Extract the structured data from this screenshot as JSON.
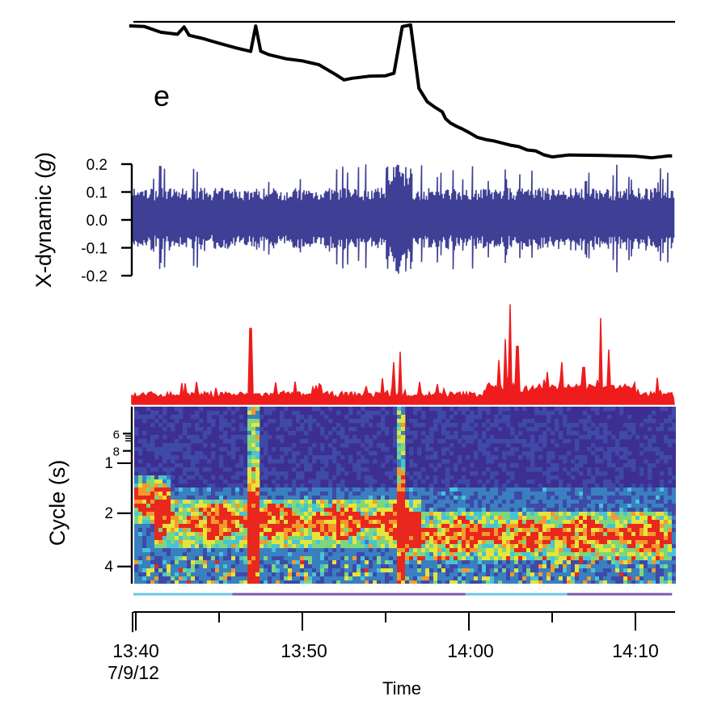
{
  "panel_label": "e",
  "chart_data": [
    {
      "type": "line",
      "panel": "depth-trace",
      "title": "",
      "xlabel": "",
      "ylabel": "",
      "x_unit": "minutes after 13:40",
      "color": "#000000",
      "series": [
        {
          "x": [
            -0.4,
            0.5,
            1.5,
            2.5,
            2.9,
            3.2,
            4.0,
            5.0,
            6.0,
            6.9,
            7.2,
            7.5,
            8.0,
            9.0,
            10.0,
            11.0,
            12.0,
            12.5,
            13.0,
            14.0,
            15.0,
            15.5,
            16.0,
            16.5,
            17.0,
            17.5,
            17.9,
            18.4,
            18.6,
            18.9,
            19.3,
            19.6,
            20.0,
            20.5,
            21.0,
            21.5,
            22.0,
            22.5,
            23.0,
            23.5,
            24.0,
            24.5,
            25.0,
            26.0,
            28.0,
            30.0,
            31.0,
            32.0,
            32.2
          ],
          "y": [
            100,
            99,
            97,
            95,
            99,
            95,
            93,
            90,
            88,
            86,
            100,
            86,
            84,
            82,
            80,
            78,
            73,
            70,
            70,
            72,
            72,
            74,
            100,
            100,
            65,
            58,
            55,
            52,
            48,
            46,
            44,
            42,
            40,
            38,
            36,
            35,
            34,
            33,
            32,
            31,
            30,
            28,
            27,
            27,
            27,
            27,
            26,
            27,
            27
          ]
        }
      ]
    },
    {
      "type": "line",
      "panel": "x-dynamic",
      "title": "",
      "xlabel": "",
      "ylabel": "X-dynamic (",
      "ylabel_unit": "g",
      "ylabel_close": ")",
      "ylim": [
        -0.2,
        0.2
      ],
      "yticks": [
        "0.2",
        "0.1",
        "0.0",
        "-0.1",
        "-0.2"
      ],
      "color": "#3e3f95",
      "envelope_note": "dense oscillation, amplitude mostly 0.05–0.15 g, spikes reaching ±0.2 g near 13:55"
    },
    {
      "type": "bar",
      "panel": "activity",
      "title": "",
      "color": "#ee1c1c",
      "x_unit": "minutes after 13:40",
      "peaks": [
        {
          "x": 6.9,
          "value": 0.72
        },
        {
          "x": 15.9,
          "value": 0.5
        },
        {
          "x": 15.5,
          "value": 0.4
        },
        {
          "x": 22.5,
          "value": 0.95
        },
        {
          "x": 22.2,
          "value": 0.62
        },
        {
          "x": 22.9,
          "value": 0.55
        },
        {
          "x": 21.8,
          "value": 0.42
        },
        {
          "x": 27.9,
          "value": 0.82
        },
        {
          "x": 28.4,
          "value": 0.52
        },
        {
          "x": 26.9,
          "value": 0.35
        },
        {
          "x": 25.6,
          "value": 0.4
        }
      ]
    },
    {
      "type": "heatmap",
      "panel": "spectrogram",
      "title": "",
      "xlabel": "",
      "ylabel": "Cycle (s)",
      "ytick_labels": [
        "6",
        "8",
        "1",
        "2",
        "4"
      ],
      "colormap": [
        "#3b2d8f",
        "#3f49a8",
        "#3a7fc0",
        "#46c4d6",
        "#7ed67c",
        "#e6e43a",
        "#f39a2a",
        "#e8281e"
      ],
      "features": [
        {
          "period": 1.6,
          "from": -0.4,
          "to": 2.0,
          "strength": "high"
        },
        {
          "period": 2.2,
          "from": 1.0,
          "to": 17.0,
          "strength": "high"
        },
        {
          "period": 2.6,
          "from": 16.0,
          "to": 32.0,
          "strength": "high"
        },
        {
          "period": "broadband",
          "at": [
            6.9,
            15.8
          ],
          "strength": "very high"
        }
      ]
    }
  ],
  "behavior_bar": {
    "segments": [
      {
        "from": -0.4,
        "to": 5.8,
        "color": "#6cc6e6"
      },
      {
        "from": 5.8,
        "to": 19.8,
        "color": "#7a57b4"
      },
      {
        "from": 19.8,
        "to": 25.9,
        "color": "#6cc6e6"
      },
      {
        "from": 25.9,
        "to": 32.2,
        "color": "#7a57b4"
      }
    ]
  },
  "time_axis": {
    "ticks": [
      "13:40",
      "13:50",
      "14:00",
      "14:10"
    ],
    "date_label": "7/9/12",
    "title": "Time"
  }
}
